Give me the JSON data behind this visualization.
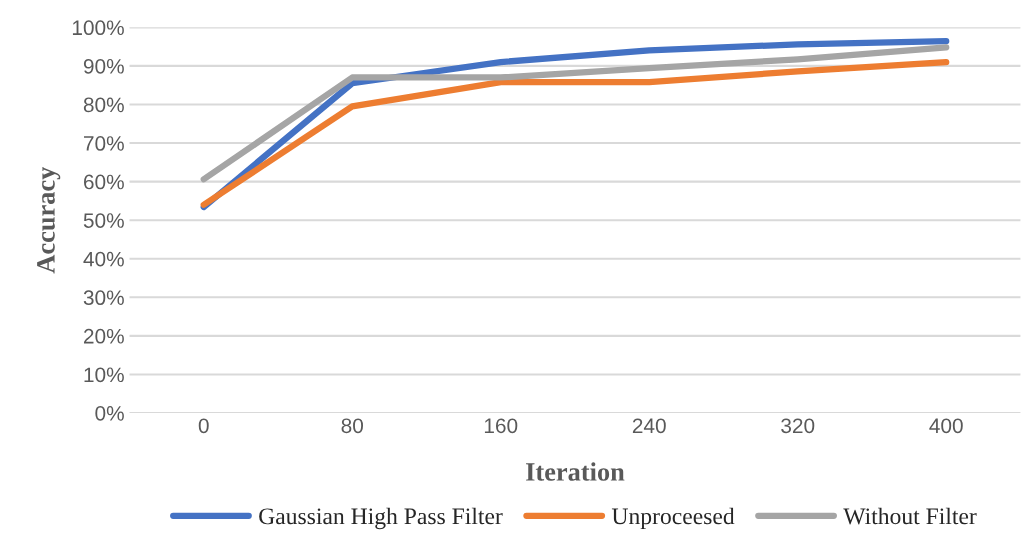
{
  "chart_data": {
    "type": "line",
    "xlabel": "Iteration",
    "ylabel": "Accuracy",
    "categories": [
      "0",
      "80",
      "160",
      "240",
      "320",
      "400"
    ],
    "series": [
      {
        "name": "Gaussian High Pass Filter",
        "color": "#4472c4",
        "values": [
          53.4,
          85.5,
          91,
          94,
          95.6,
          96.4
        ]
      },
      {
        "name": "Unproceesed",
        "color": "#ed7d31",
        "values": [
          54,
          79.5,
          85.8,
          85.8,
          88.6,
          91
        ]
      },
      {
        "name": "Without Filter",
        "color": "#a5a5a5",
        "values": [
          60.6,
          87,
          87,
          89.4,
          91.7,
          94.8
        ]
      }
    ],
    "ylim": [
      0,
      100
    ],
    "yticks": [
      {
        "value": 0,
        "label": "0%"
      },
      {
        "value": 10,
        "label": "10%"
      },
      {
        "value": 20,
        "label": "20%"
      },
      {
        "value": 30,
        "label": "30%"
      },
      {
        "value": 40,
        "label": "40%"
      },
      {
        "value": 50,
        "label": "50%"
      },
      {
        "value": 60,
        "label": "60%"
      },
      {
        "value": 70,
        "label": "70%"
      },
      {
        "value": 80,
        "label": "80%"
      },
      {
        "value": 90,
        "label": "90%"
      },
      {
        "value": 100,
        "label": "100%"
      }
    ],
    "grid": "y",
    "legend": "bottom",
    "marker": "none",
    "line_style": "solid"
  }
}
